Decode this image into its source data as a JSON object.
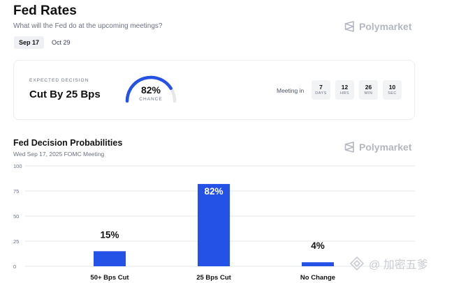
{
  "header": {
    "title": "Fed Rates",
    "subtitle": "What will the Fed do at the upcoming meetings?",
    "brand": "Polymarket"
  },
  "tabs": [
    {
      "label": "Sep 17",
      "active": true
    },
    {
      "label": "Oct 29",
      "active": false
    }
  ],
  "decision_card": {
    "label": "EXPECTED DECISION",
    "value": "Cut By 25 Bps",
    "chance_value": "82%",
    "chance_fraction": 0.82,
    "chance_label": "CHANCE",
    "meeting_label": "Meeting in",
    "countdown": [
      {
        "value": "7",
        "unit": "DAYS"
      },
      {
        "value": "12",
        "unit": "HRS"
      },
      {
        "value": "26",
        "unit": "MIN"
      },
      {
        "value": "10",
        "unit": "SEC"
      }
    ]
  },
  "probabilities": {
    "title": "Fed Decision Probabilities",
    "subtitle": "Wed Sep 17, 2025 FOMC Meeting",
    "brand": "Polymarket"
  },
  "chart_data": {
    "type": "bar",
    "categories": [
      "50+ Bps Cut",
      "25 Bps Cut",
      "No Change"
    ],
    "values": [
      15,
      82,
      4
    ],
    "data_labels": [
      "15%",
      "82%",
      "4%"
    ],
    "yticks": [
      "0",
      "25",
      "50",
      "75",
      "100"
    ],
    "ylim": [
      0,
      100
    ],
    "grid": true,
    "bar_color": "#2451e6"
  },
  "colors": {
    "accent": "#2451e6",
    "gauge_track": "#e5e7eb"
  },
  "watermark": {
    "text": "@ 加密五爹"
  }
}
